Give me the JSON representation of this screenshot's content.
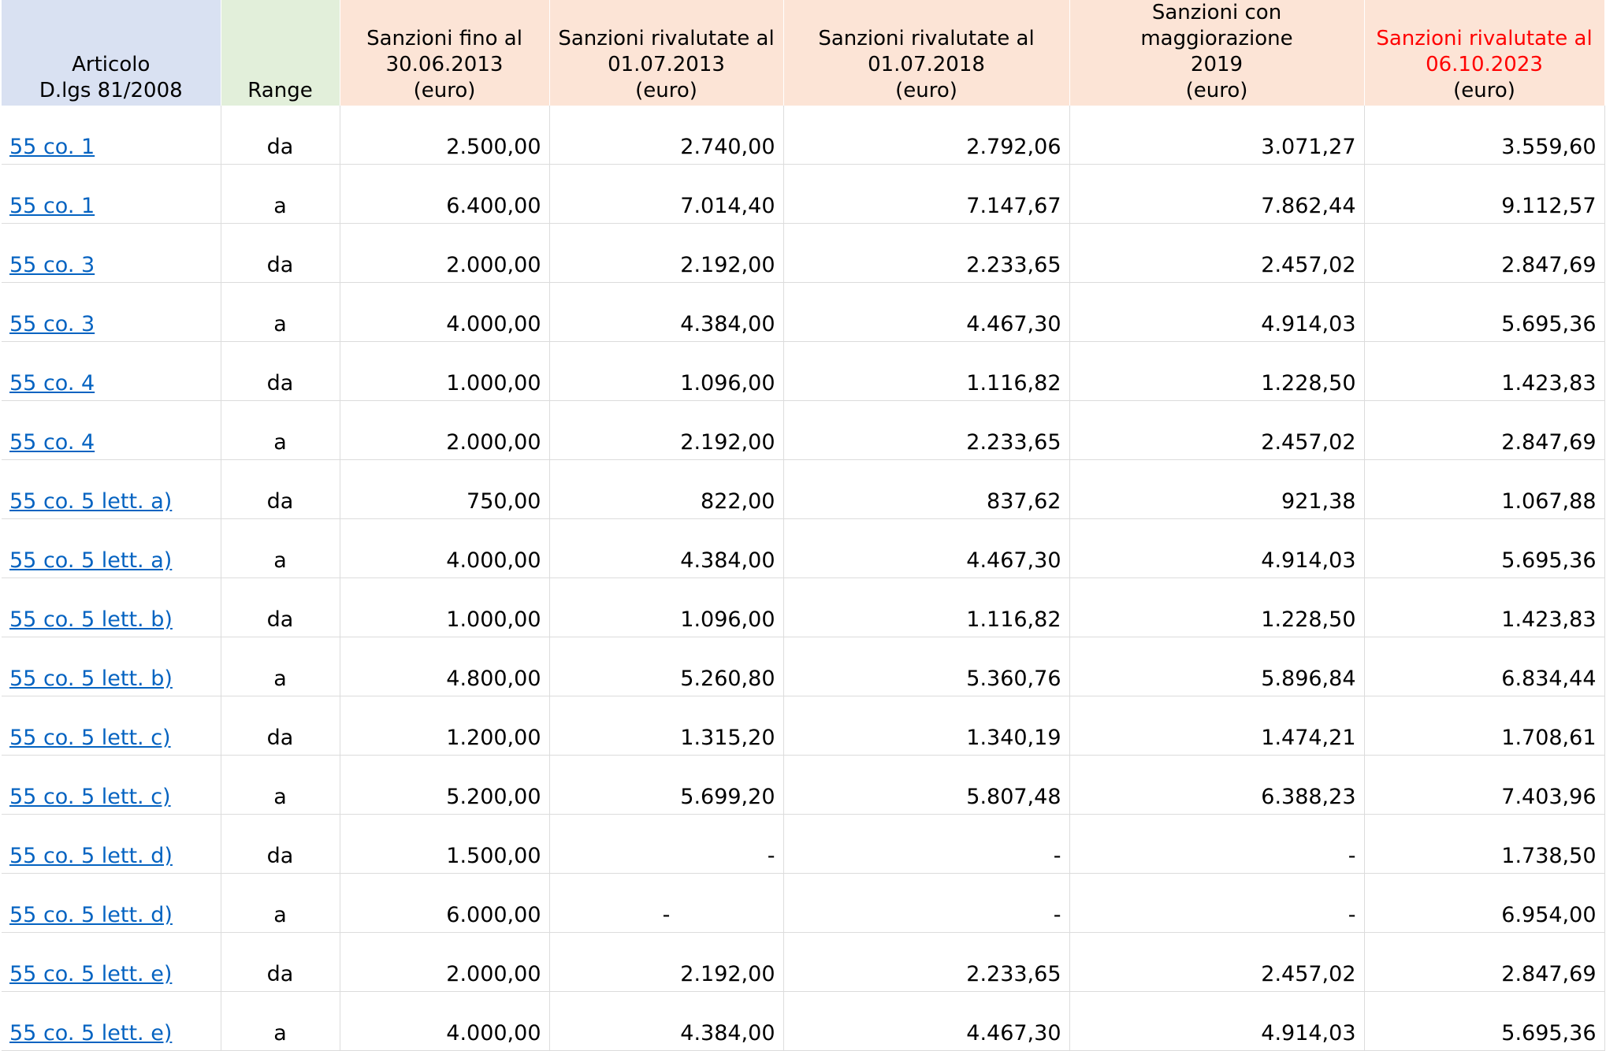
{
  "headers": {
    "articolo": "Articolo\nD.lgs 81/2008",
    "articolo_line1": "Articolo",
    "articolo_line2": "D.lgs 81/2008",
    "range": "Range",
    "col3_line1": "Sanzioni fino al",
    "col3_line2": "30.06.2013",
    "col4_line1": "Sanzioni rivalutate al",
    "col4_line2": "01.07.2013",
    "col5_line1": "Sanzioni rivalutate al",
    "col5_line2": "01.07.2018",
    "col6_line1": "Sanzioni con maggiorazione",
    "col6_line2": "2019",
    "col7_line1": "Sanzioni rivalutate al",
    "col7_line2": "06.10.2023",
    "unit": "(euro)"
  },
  "colors": {
    "header_articolo_bg": "#d9e1f2",
    "header_range_bg": "#e2efda",
    "header_sanzioni_bg": "#fce4d6",
    "link": "#0563c1",
    "highlight_header_text": "#ff0000"
  },
  "rows": [
    {
      "articolo": "55 co. 1",
      "range": "da",
      "v2013": "2.500,00",
      "v2013r": "2.740,00",
      "v2018": "2.792,06",
      "v2019": "3.071,27",
      "v2023": "3.559,60"
    },
    {
      "articolo": "55 co. 1",
      "range": "a",
      "v2013": "6.400,00",
      "v2013r": "7.014,40",
      "v2018": "7.147,67",
      "v2019": "7.862,44",
      "v2023": "9.112,57"
    },
    {
      "articolo": "55 co. 3",
      "range": "da",
      "v2013": "2.000,00",
      "v2013r": "2.192,00",
      "v2018": "2.233,65",
      "v2019": "2.457,02",
      "v2023": "2.847,69"
    },
    {
      "articolo": "55 co. 3",
      "range": "a",
      "v2013": "4.000,00",
      "v2013r": "4.384,00",
      "v2018": "4.467,30",
      "v2019": "4.914,03",
      "v2023": "5.695,36"
    },
    {
      "articolo": "55 co. 4",
      "range": "da",
      "v2013": "1.000,00",
      "v2013r": "1.096,00",
      "v2018": "1.116,82",
      "v2019": "1.228,50",
      "v2023": "1.423,83"
    },
    {
      "articolo": "55 co. 4",
      "range": "a",
      "v2013": "2.000,00",
      "v2013r": "2.192,00",
      "v2018": "2.233,65",
      "v2019": "2.457,02",
      "v2023": "2.847,69"
    },
    {
      "articolo": "55 co. 5 lett. a)",
      "range": "da",
      "v2013": "750,00",
      "v2013r": "822,00",
      "v2018": "837,62",
      "v2019": "921,38",
      "v2023": "1.067,88"
    },
    {
      "articolo": "55 co. 5 lett. a)",
      "range": "a",
      "v2013": "4.000,00",
      "v2013r": "4.384,00",
      "v2018": "4.467,30",
      "v2019": "4.914,03",
      "v2023": "5.695,36"
    },
    {
      "articolo": "55 co. 5 lett. b)",
      "range": "da",
      "v2013": "1.000,00",
      "v2013r": "1.096,00",
      "v2018": "1.116,82",
      "v2019": "1.228,50",
      "v2023": "1.423,83"
    },
    {
      "articolo": "55 co. 5 lett. b)",
      "range": "a",
      "v2013": "4.800,00",
      "v2013r": "5.260,80",
      "v2018": "5.360,76",
      "v2019": "5.896,84",
      "v2023": "6.834,44"
    },
    {
      "articolo": "55 co. 5 lett. c)",
      "range": "da",
      "v2013": "1.200,00",
      "v2013r": "1.315,20",
      "v2018": "1.340,19",
      "v2019": "1.474,21",
      "v2023": "1.708,61"
    },
    {
      "articolo": "55 co. 5 lett. c)",
      "range": "a",
      "v2013": "5.200,00",
      "v2013r": "5.699,20",
      "v2018": "5.807,48",
      "v2019": "6.388,23",
      "v2023": "7.403,96"
    },
    {
      "articolo": "55 co. 5 lett. d)",
      "range": "da",
      "v2013": "1.500,00",
      "v2013r": "-",
      "v2018": "-",
      "v2019": "-",
      "v2023": "1.738,50"
    },
    {
      "articolo": "55 co. 5 lett. d)",
      "range": "a",
      "v2013": "6.000,00",
      "v2013r": "-",
      "v2018": "-",
      "v2019": "-",
      "v2023": "6.954,00"
    },
    {
      "articolo": "55 co. 5 lett. e)",
      "range": "da",
      "v2013": "2.000,00",
      "v2013r": "2.192,00",
      "v2018": "2.233,65",
      "v2019": "2.457,02",
      "v2023": "2.847,69"
    },
    {
      "articolo": "55 co. 5 lett. e)",
      "range": "a",
      "v2013": "4.000,00",
      "v2013r": "4.384,00",
      "v2018": "4.467,30",
      "v2019": "4.914,03",
      "v2023": "5.695,36"
    }
  ]
}
